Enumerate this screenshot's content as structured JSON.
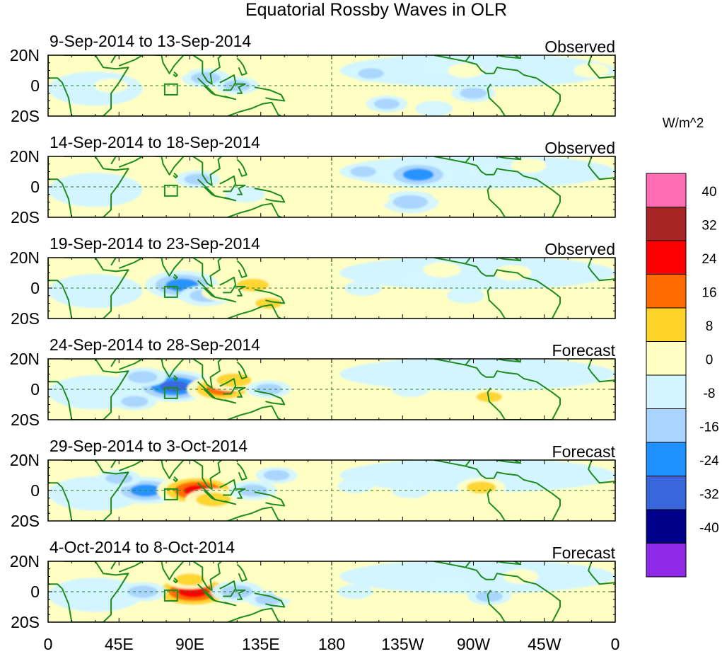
{
  "chart_data": {
    "type": "heatmap",
    "title": "Equatorial Rossby Waves in OLR",
    "units": "W/m^2",
    "lat_ticks": [
      "20N",
      "0",
      "20S"
    ],
    "lon_ticks": [
      "0",
      "45E",
      "90E",
      "135E",
      "180",
      "135W",
      "90W",
      "45W",
      "0"
    ],
    "lon_range": [
      0,
      360
    ],
    "lat_range": [
      -20,
      20
    ],
    "colorbar": {
      "levels": [
        "40",
        "32",
        "24",
        "16",
        "8",
        "0",
        "-8",
        "-16",
        "-24",
        "-32",
        "-40"
      ],
      "level_values": [
        40,
        32,
        24,
        16,
        8,
        0,
        -8,
        -16,
        -24,
        -32,
        -40
      ],
      "colors": [
        "#ff6eb4",
        "#a62424",
        "#ff0000",
        "#ff6a00",
        "#ffd42a",
        "#ffffc4",
        "#d3f5ff",
        "#a8d4ff",
        "#1e90ff",
        "#3a66dc",
        "#00008b",
        "#8f2ae8"
      ]
    },
    "panels": [
      {
        "dates": "9-Sep-2014 to 13-Sep-2014",
        "label": "Observed",
        "anomalies": [
          {
            "lon": 100,
            "lat": 5,
            "value": -12
          },
          {
            "lon": 120,
            "lat": 0,
            "value": -10
          },
          {
            "lon": 205,
            "lat": 8,
            "value": -9
          },
          {
            "lon": 250,
            "lat": 12,
            "value": -8
          },
          {
            "lon": 270,
            "lat": -5,
            "value": -10
          },
          {
            "lon": 285,
            "lat": 8,
            "value": -7
          },
          {
            "lon": 215,
            "lat": -12,
            "value": -9
          },
          {
            "lon": 245,
            "lat": -15,
            "value": -7
          },
          {
            "lon": 185,
            "lat": -8,
            "value": 5
          },
          {
            "lon": 265,
            "lat": 10,
            "value": 6
          },
          {
            "lon": 300,
            "lat": -15,
            "value": 6
          },
          {
            "lon": 345,
            "lat": 10,
            "value": 6
          },
          {
            "lon": 40,
            "lat": 0,
            "value": 5
          },
          {
            "lon": 80,
            "lat": 10,
            "value": 4
          }
        ]
      },
      {
        "dates": "14-Sep-2014 to 18-Sep-2014",
        "label": "Observed",
        "anomalies": [
          {
            "lon": 95,
            "lat": 5,
            "value": -10
          },
          {
            "lon": 125,
            "lat": -5,
            "value": -8
          },
          {
            "lon": 235,
            "lat": 8,
            "value": -22
          },
          {
            "lon": 230,
            "lat": -10,
            "value": -16
          },
          {
            "lon": 200,
            "lat": 10,
            "value": -9
          },
          {
            "lon": 275,
            "lat": 12,
            "value": -7
          },
          {
            "lon": 160,
            "lat": 10,
            "value": 8
          },
          {
            "lon": 160,
            "lat": -12,
            "value": 6
          },
          {
            "lon": 205,
            "lat": -8,
            "value": 7
          },
          {
            "lon": 255,
            "lat": -5,
            "value": 6
          },
          {
            "lon": 290,
            "lat": -12,
            "value": 7
          },
          {
            "lon": 305,
            "lat": 14,
            "value": 6
          }
        ]
      },
      {
        "dates": "19-Sep-2014 to 23-Sep-2014",
        "label": "Observed",
        "anomalies": [
          {
            "lon": 85,
            "lat": 2,
            "value": -24
          },
          {
            "lon": 100,
            "lat": -5,
            "value": -14
          },
          {
            "lon": 130,
            "lat": 2,
            "value": 14
          },
          {
            "lon": 140,
            "lat": -10,
            "value": 10
          },
          {
            "lon": 145,
            "lat": 15,
            "value": 8
          },
          {
            "lon": 110,
            "lat": -3,
            "value": 8
          },
          {
            "lon": 200,
            "lat": 0,
            "value": -7
          },
          {
            "lon": 235,
            "lat": 5,
            "value": -8
          },
          {
            "lon": 265,
            "lat": -5,
            "value": -7
          },
          {
            "lon": 250,
            "lat": 12,
            "value": 7
          },
          {
            "lon": 295,
            "lat": 10,
            "value": 7
          },
          {
            "lon": 290,
            "lat": -12,
            "value": 7
          }
        ]
      },
      {
        "dates": "24-Sep-2014 to 28-Sep-2014",
        "label": "Forecast",
        "anomalies": [
          {
            "lon": 80,
            "lat": 2,
            "value": -28
          },
          {
            "lon": 60,
            "lat": 8,
            "value": -12
          },
          {
            "lon": 55,
            "lat": -8,
            "value": -10
          },
          {
            "lon": 110,
            "lat": 0,
            "value": 22
          },
          {
            "lon": 118,
            "lat": 6,
            "value": 16
          },
          {
            "lon": 140,
            "lat": 0,
            "value": -10
          },
          {
            "lon": 175,
            "lat": 2,
            "value": 6
          },
          {
            "lon": 230,
            "lat": 0,
            "value": -7
          },
          {
            "lon": 280,
            "lat": -5,
            "value": 9
          },
          {
            "lon": 300,
            "lat": 4,
            "value": -7
          },
          {
            "lon": 250,
            "lat": -10,
            "value": 5
          }
        ]
      },
      {
        "dates": "29-Sep-2014 to 3-Oct-2014",
        "label": "Forecast",
        "anomalies": [
          {
            "lon": 62,
            "lat": 0,
            "value": -22
          },
          {
            "lon": 45,
            "lat": 8,
            "value": -10
          },
          {
            "lon": 95,
            "lat": 0,
            "value": 28
          },
          {
            "lon": 105,
            "lat": -6,
            "value": 16
          },
          {
            "lon": 130,
            "lat": 0,
            "value": -12
          },
          {
            "lon": 145,
            "lat": 10,
            "value": -9
          },
          {
            "lon": 170,
            "lat": 0,
            "value": 7
          },
          {
            "lon": 195,
            "lat": 3,
            "value": -6
          },
          {
            "lon": 230,
            "lat": 0,
            "value": -7
          },
          {
            "lon": 275,
            "lat": 2,
            "value": 12
          },
          {
            "lon": 290,
            "lat": -8,
            "value": 7
          },
          {
            "lon": 320,
            "lat": -8,
            "value": 5
          }
        ]
      },
      {
        "dates": "4-Oct-2014 to 8-Oct-2014",
        "label": "Forecast",
        "anomalies": [
          {
            "lon": 92,
            "lat": 0,
            "value": 30
          },
          {
            "lon": 90,
            "lat": 8,
            "value": 12
          },
          {
            "lon": 60,
            "lat": 0,
            "value": -12
          },
          {
            "lon": 120,
            "lat": 0,
            "value": -14
          },
          {
            "lon": 140,
            "lat": -5,
            "value": -10
          },
          {
            "lon": 155,
            "lat": 0,
            "value": 8
          },
          {
            "lon": 195,
            "lat": 0,
            "value": -6
          },
          {
            "lon": 255,
            "lat": 5,
            "value": -8
          },
          {
            "lon": 280,
            "lat": -3,
            "value": -10
          },
          {
            "lon": 300,
            "lat": 10,
            "value": 6
          },
          {
            "lon": 305,
            "lat": -12,
            "value": 5
          }
        ]
      }
    ]
  }
}
